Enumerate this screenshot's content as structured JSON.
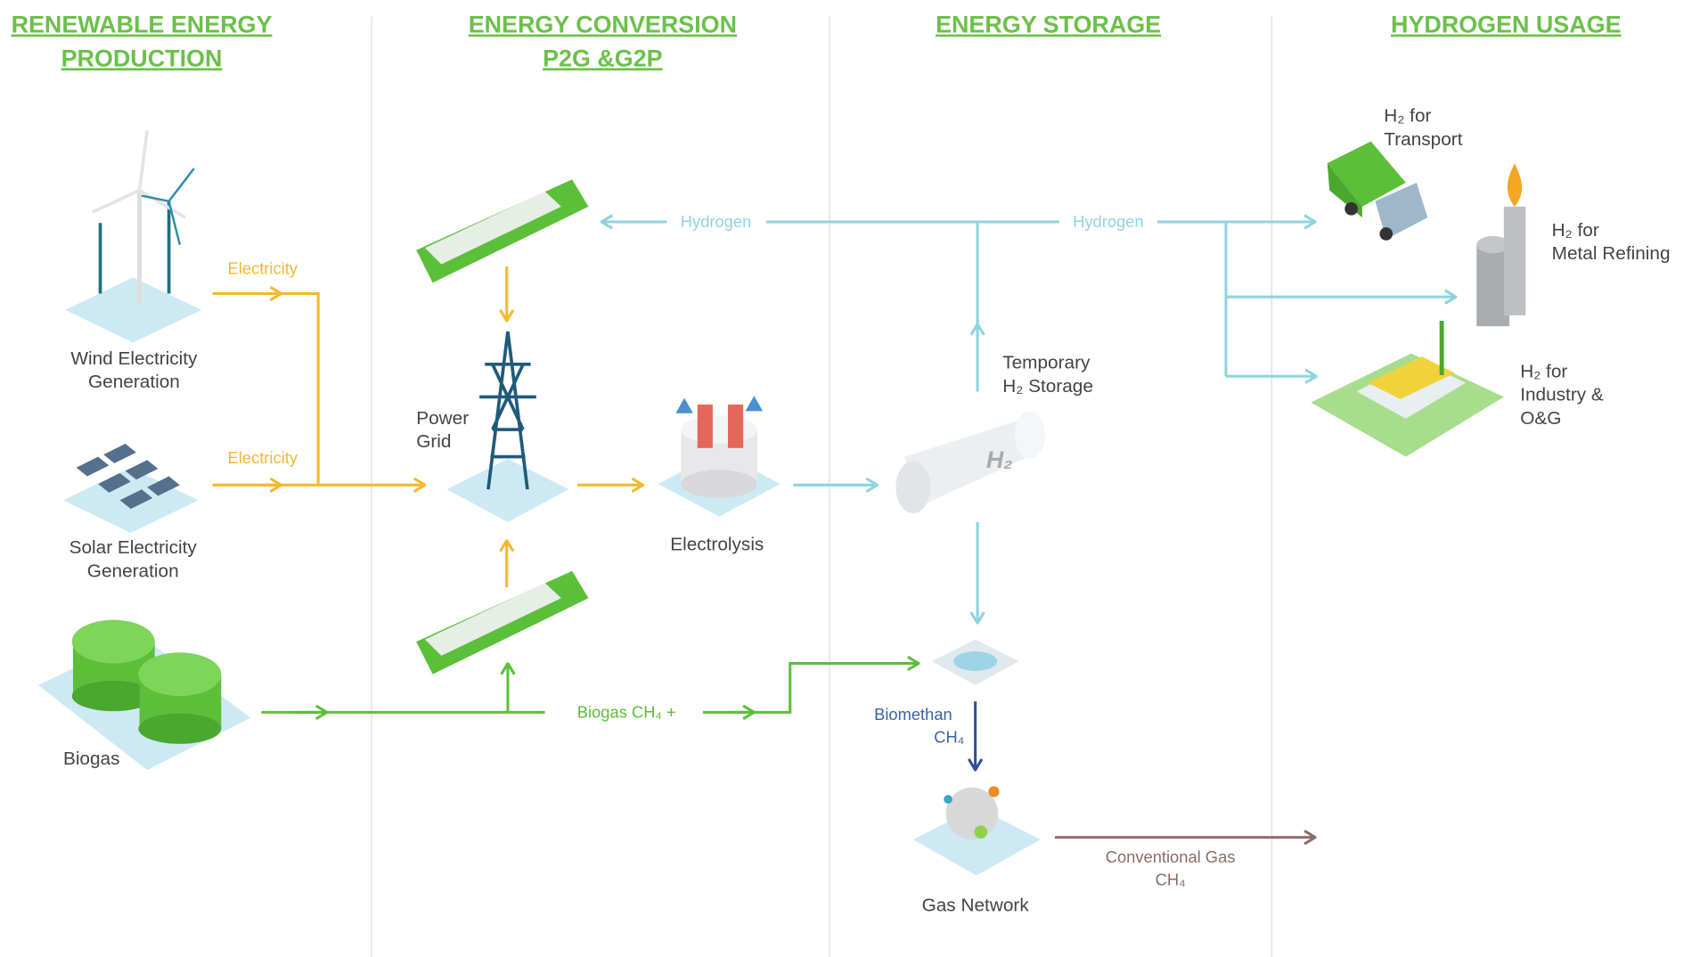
{
  "columns": [
    {
      "title": [
        "RENEWABLE ENERGY",
        "PRODUCTION"
      ]
    },
    {
      "title": [
        "ENERGY CONVERSION",
        "P2G &G2P"
      ]
    },
    {
      "title": [
        "ENERGY STORAGE"
      ]
    },
    {
      "title": [
        "HYDROGEN USAGE"
      ]
    }
  ],
  "nodes": [
    {
      "lines": [
        "Wind Electricity",
        "Generation"
      ]
    },
    {
      "lines": [
        "Solar Electricity",
        "Generation"
      ]
    },
    {
      "lines": [
        "Biogas"
      ]
    },
    {
      "lines": [
        "Power",
        "Grid"
      ]
    },
    {
      "lines": [
        "Electrolysis"
      ]
    },
    {
      "lines": [
        "Temporary",
        "H₂ Storage"
      ]
    },
    {
      "lines": [
        "Gas Network"
      ]
    },
    {
      "lines": [
        "H₂ for",
        "Transport"
      ]
    },
    {
      "lines": [
        "H₂ for",
        "Metal Refining"
      ]
    },
    {
      "lines": [
        "H₂ for",
        "Industry &",
        "O&G"
      ]
    }
  ],
  "flows": [
    {
      "lines": [
        "Electricity"
      ]
    },
    {
      "lines": [
        "Electricity"
      ]
    },
    {
      "lines": [
        "Hydrogen"
      ]
    },
    {
      "lines": [
        "Hydrogen"
      ]
    },
    {
      "lines": [
        "Biogas CH₄ +"
      ]
    },
    {
      "lines": [
        "Biomethan",
        "CH₄"
      ]
    },
    {
      "lines": [
        "Conventional Gas",
        "CH₄"
      ]
    }
  ]
}
